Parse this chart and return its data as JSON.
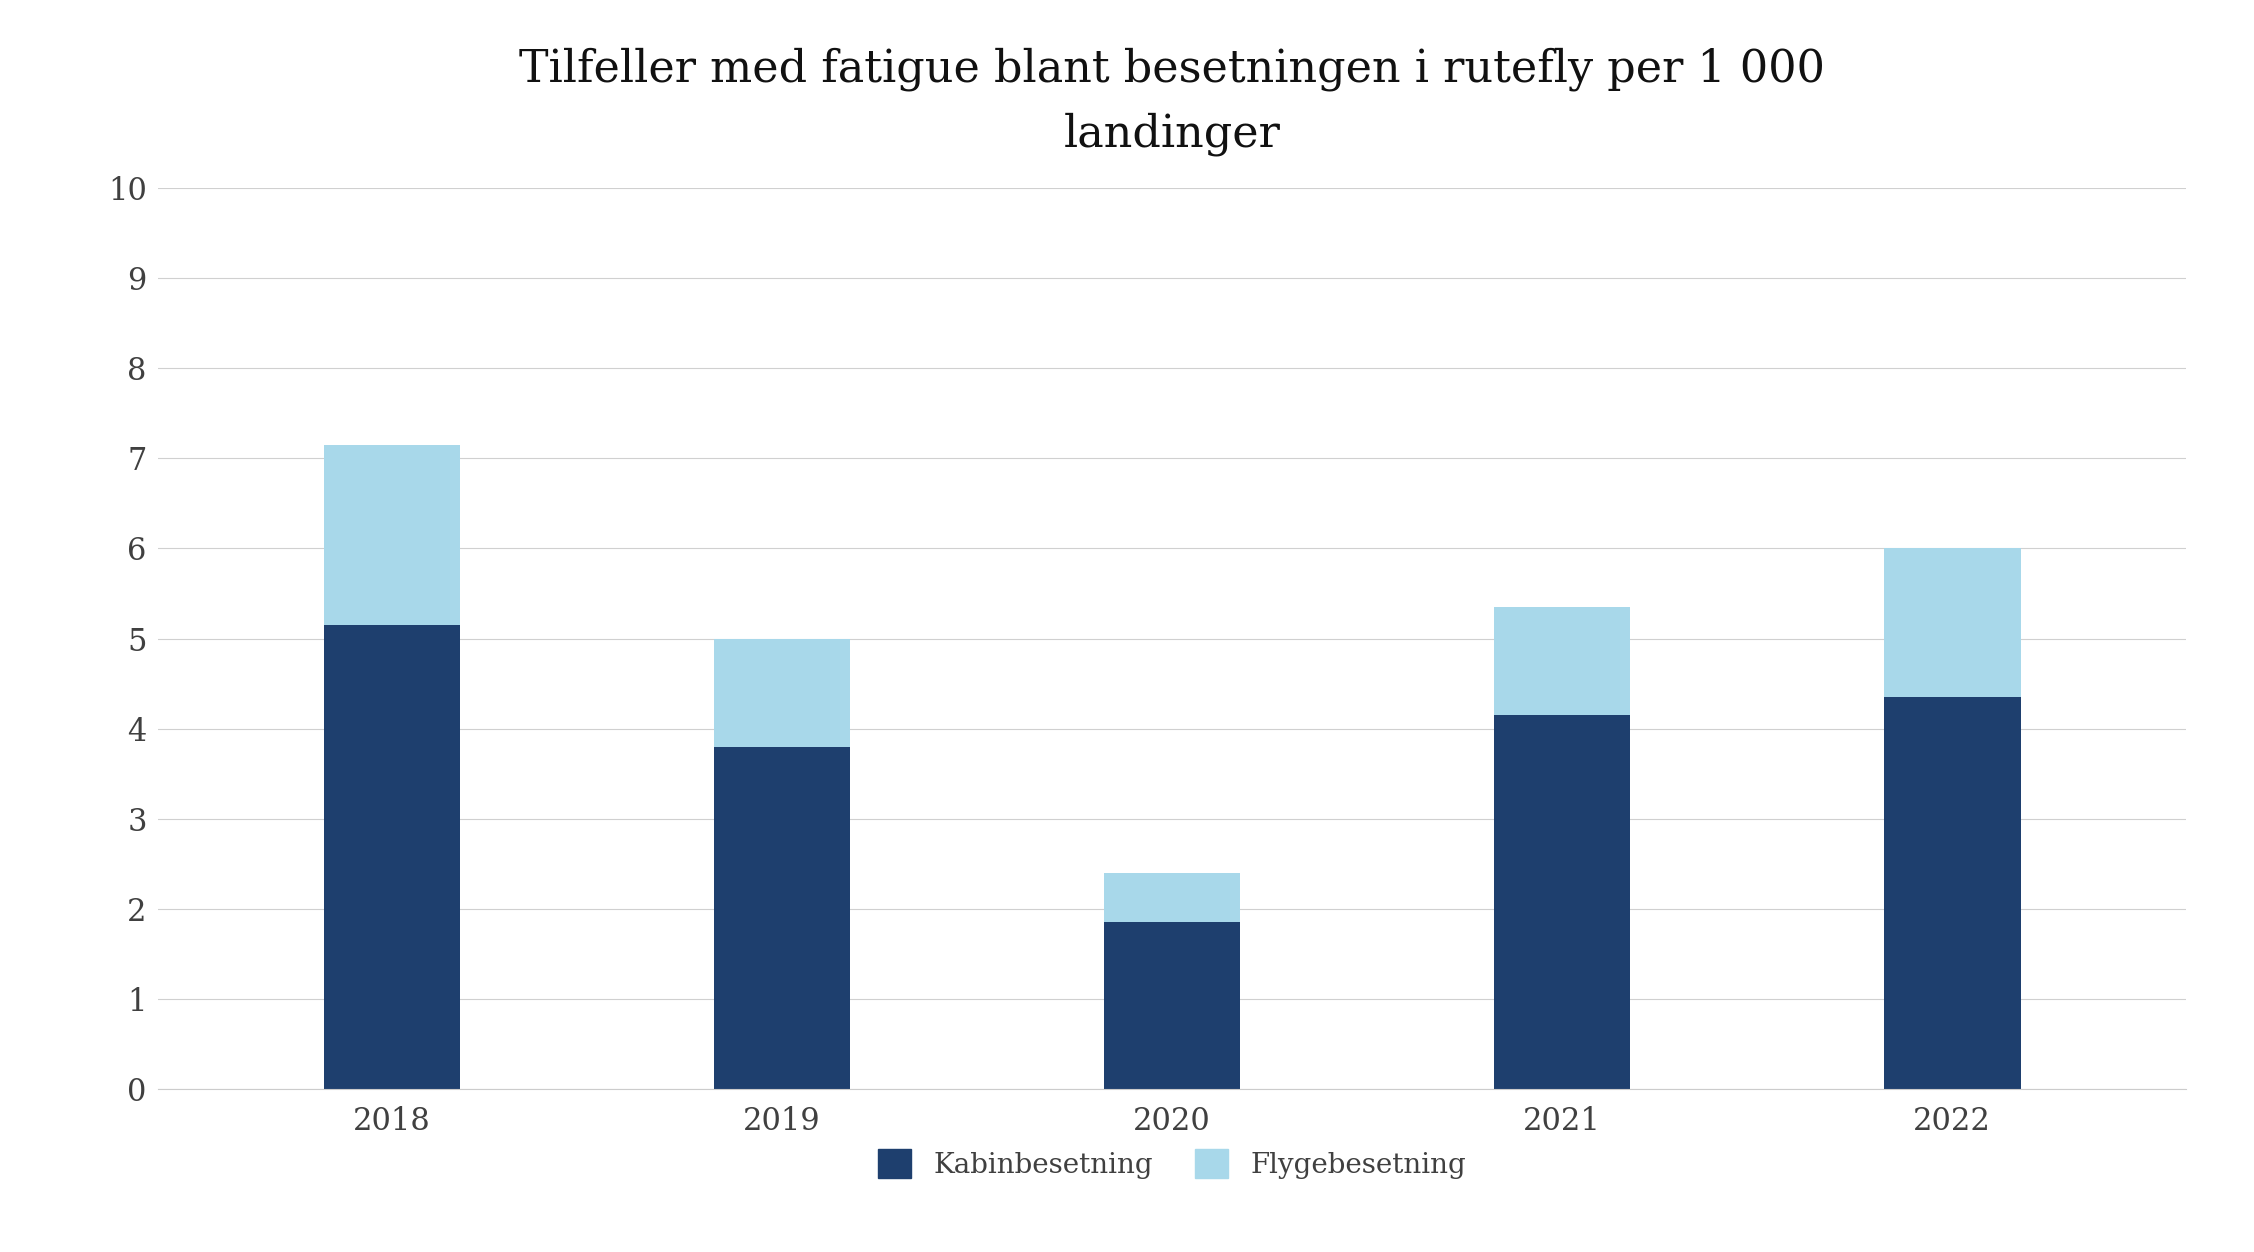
{
  "title": "Tilfeller med fatigue blant besetningen i rutefly per 1 000\nlandinger",
  "categories": [
    "2018",
    "2019",
    "2020",
    "2021",
    "2022"
  ],
  "kabinbesetning": [
    5.15,
    3.8,
    1.85,
    4.15,
    4.35
  ],
  "flygebesetning": [
    2.0,
    1.2,
    0.55,
    1.2,
    1.65
  ],
  "color_kabin": "#1e3f6e",
  "color_flyge": "#a8d8ea",
  "background_color": "#ffffff",
  "ylim": [
    0,
    10
  ],
  "yticks": [
    0,
    1,
    2,
    3,
    4,
    5,
    6,
    7,
    8,
    9,
    10
  ],
  "legend_kabin": "Kabinbesetning",
  "legend_flyge": "Flygebesetning",
  "title_fontsize": 32,
  "tick_fontsize": 22,
  "legend_fontsize": 20,
  "bar_width": 0.35,
  "text_color": "#404040",
  "grid_color": "#d0d0d0"
}
